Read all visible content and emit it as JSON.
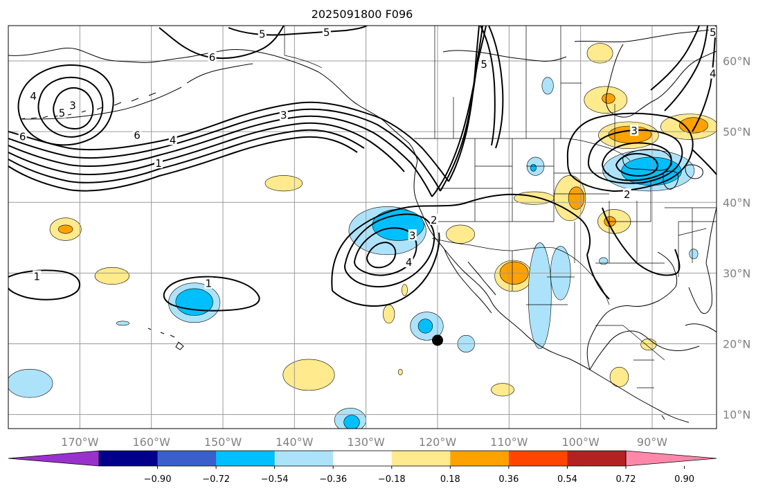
{
  "title": "2025091800 F096",
  "map": {
    "lon_range": [
      -180,
      -81
    ],
    "lat_range": [
      8,
      65
    ],
    "lon_ticks": [
      {
        "lon": -170,
        "label": "170°W"
      },
      {
        "lon": -160,
        "label": "160°W"
      },
      {
        "lon": -150,
        "label": "150°W"
      },
      {
        "lon": -140,
        "label": "140°W"
      },
      {
        "lon": -130,
        "label": "130°W"
      },
      {
        "lon": -120,
        "label": "120°W"
      },
      {
        "lon": -110,
        "label": "110°W"
      },
      {
        "lon": -100,
        "label": "100°W"
      },
      {
        "lon": -90,
        "label": "90°W"
      }
    ],
    "lat_ticks": [
      {
        "lat": 10,
        "label": "10°N"
      },
      {
        "lat": 20,
        "label": "20°N"
      },
      {
        "lat": 30,
        "label": "30°N"
      },
      {
        "lat": 40,
        "label": "40°N"
      },
      {
        "lat": 50,
        "label": "50°N"
      },
      {
        "lat": 60,
        "label": "60°N"
      }
    ],
    "marker": {
      "lon": -120,
      "lat": 20.5,
      "color": "#000000"
    },
    "contour_labels": [
      {
        "text": "5",
        "lon": -144.5,
        "lat": 63.8
      },
      {
        "text": "5",
        "lon": -135.5,
        "lat": 64
      },
      {
        "text": "6",
        "lon": -151.5,
        "lat": 60.5
      },
      {
        "text": "5",
        "lon": -113.5,
        "lat": 59.5
      },
      {
        "text": "4",
        "lon": -176.5,
        "lat": 55
      },
      {
        "text": "3",
        "lon": -171,
        "lat": 53.7
      },
      {
        "text": "5",
        "lon": -172.5,
        "lat": 52.6
      },
      {
        "text": "6",
        "lon": -178,
        "lat": 49.3
      },
      {
        "text": "6",
        "lon": -162,
        "lat": 49.5
      },
      {
        "text": "4",
        "lon": -157,
        "lat": 48.8
      },
      {
        "text": "1",
        "lon": -159,
        "lat": 45.5
      },
      {
        "text": "3",
        "lon": -141.5,
        "lat": 52.3
      },
      {
        "text": "3",
        "lon": -92.5,
        "lat": 50.1
      },
      {
        "text": "2",
        "lon": -120.5,
        "lat": 37.5
      },
      {
        "text": "3",
        "lon": -123.5,
        "lat": 35.3
      },
      {
        "text": "4",
        "lon": -124,
        "lat": 31.5
      },
      {
        "text": "2",
        "lon": -93.5,
        "lat": 41.1
      },
      {
        "text": "1",
        "lon": -176,
        "lat": 29.5
      },
      {
        "text": "1",
        "lon": -152,
        "lat": 28.5
      },
      {
        "text": "5",
        "lon": -81.5,
        "lat": 64
      },
      {
        "text": "4",
        "lon": -81.5,
        "lat": 58.2
      }
    ],
    "shading": [
      {
        "color": "#ffea8d",
        "lon": -141.5,
        "lat": 42.7,
        "rx": 2.6,
        "ry": 1.1
      },
      {
        "color": "#ffea8d",
        "lon": -172,
        "lat": 36.2,
        "rx": 2.2,
        "ry": 1.6
      },
      {
        "color": "#ffa200",
        "lon": -172,
        "lat": 36.2,
        "rx": 1.0,
        "ry": 0.6
      },
      {
        "color": "#ffea8d",
        "lon": -165.5,
        "lat": 29.6,
        "rx": 2.4,
        "ry": 1.2
      },
      {
        "color": "#ade3fa",
        "lon": -154,
        "lat": 25.8,
        "rx": 3.6,
        "ry": 2.8
      },
      {
        "color": "#00bfff",
        "lon": -154,
        "lat": 25.9,
        "rx": 2.6,
        "ry": 1.9
      },
      {
        "color": "#ade3fa",
        "lon": -177,
        "lat": 14.4,
        "rx": 3.2,
        "ry": 2.0
      },
      {
        "color": "#ffea8d",
        "lon": -138,
        "lat": 15.6,
        "rx": 3.6,
        "ry": 2.2
      },
      {
        "color": "#ade3fa",
        "lon": -132.2,
        "lat": 9.2,
        "rx": 2.2,
        "ry": 1.7
      },
      {
        "color": "#00bfff",
        "lon": -132,
        "lat": 8.9,
        "rx": 1.1,
        "ry": 1.0
      },
      {
        "color": "#ade3fa",
        "lon": -127,
        "lat": 36.0,
        "rx": 5.4,
        "ry": 3.4
      },
      {
        "color": "#00bfff",
        "lon": -125.5,
        "lat": 36.8,
        "rx": 3.6,
        "ry": 2.2
      },
      {
        "color": "#ffea8d",
        "lon": -126.8,
        "lat": 24.2,
        "rx": 0.8,
        "ry": 1.3
      },
      {
        "color": "#ffea8d",
        "lon": -124.6,
        "lat": 27.6,
        "rx": 0.4,
        "ry": 0.8
      },
      {
        "color": "#ade3fa",
        "lon": -121.5,
        "lat": 22.5,
        "rx": 2.3,
        "ry": 2.0
      },
      {
        "color": "#00bfff",
        "lon": -121.7,
        "lat": 22.5,
        "rx": 1.0,
        "ry": 1.0
      },
      {
        "color": "#ade3fa",
        "lon": -116,
        "lat": 20,
        "rx": 1.2,
        "ry": 1.2
      },
      {
        "color": "#ffea8d",
        "lon": -116.8,
        "lat": 35.5,
        "rx": 2.0,
        "ry": 1.3
      },
      {
        "color": "#ffea8d",
        "lon": -109.4,
        "lat": 29.6,
        "rx": 2.6,
        "ry": 2.2
      },
      {
        "color": "#ffa200",
        "lon": -109.3,
        "lat": 30.0,
        "rx": 2.0,
        "ry": 1.6
      },
      {
        "color": "#ffea8d",
        "lon": -106.5,
        "lat": 40.6,
        "rx": 2.8,
        "ry": 0.9
      },
      {
        "color": "#ffea8d",
        "lon": -101.5,
        "lat": 40.6,
        "rx": 2.2,
        "ry": 3.2
      },
      {
        "color": "#ffa200",
        "lon": -100.6,
        "lat": 40.6,
        "rx": 1.1,
        "ry": 1.6
      },
      {
        "color": "#ffea8d",
        "lon": -95.3,
        "lat": 37.3,
        "rx": 2.3,
        "ry": 1.7
      },
      {
        "color": "#ffa200",
        "lon": -95.9,
        "lat": 37.3,
        "rx": 0.8,
        "ry": 0.7
      },
      {
        "color": "#ade3fa",
        "lon": -106.3,
        "lat": 45.1,
        "rx": 1.2,
        "ry": 1.3
      },
      {
        "color": "#00bfff",
        "lon": -106.6,
        "lat": 44.9,
        "rx": 0.4,
        "ry": 0.5
      },
      {
        "color": "#ade3fa",
        "lon": -104.6,
        "lat": 56.5,
        "rx": 0.8,
        "ry": 1.2
      },
      {
        "color": "#ffea8d",
        "lon": -97.3,
        "lat": 61.1,
        "rx": 1.8,
        "ry": 1.4
      },
      {
        "color": "#ffea8d",
        "lon": -96.5,
        "lat": 54.5,
        "rx": 3.0,
        "ry": 1.9
      },
      {
        "color": "#ffa200",
        "lon": -96.1,
        "lat": 54.7,
        "rx": 0.9,
        "ry": 0.7
      },
      {
        "color": "#ffea8d",
        "lon": -93.3,
        "lat": 49.5,
        "rx": 4.2,
        "ry": 1.9
      },
      {
        "color": "#ffa200",
        "lon": -93.1,
        "lat": 49.6,
        "rx": 3.0,
        "ry": 1.2
      },
      {
        "color": "#ffea8d",
        "lon": -84.8,
        "lat": 50.7,
        "rx": 4.0,
        "ry": 1.8
      },
      {
        "color": "#ffa200",
        "lon": -84.2,
        "lat": 50.9,
        "rx": 2.0,
        "ry": 1.1
      },
      {
        "color": "#ade3fa",
        "lon": -90.5,
        "lat": 44.5,
        "rx": 6.4,
        "ry": 2.9
      },
      {
        "color": "#00bfff",
        "lon": -90.1,
        "lat": 44.4,
        "rx": 4.2,
        "ry": 2.0
      },
      {
        "color": "#ade3fa",
        "lon": -105.7,
        "lat": 26.8,
        "rx": 1.6,
        "ry": 7.5
      },
      {
        "color": "#ade3fa",
        "lon": -102.8,
        "lat": 30.0,
        "rx": 1.4,
        "ry": 3.8
      },
      {
        "color": "#ade3fa",
        "lon": -84.2,
        "lat": 32.7,
        "rx": 0.6,
        "ry": 0.7
      },
      {
        "color": "#ade3fa",
        "lon": -96.8,
        "lat": 31.7,
        "rx": 0.6,
        "ry": 0.5
      },
      {
        "color": "#ffea8d",
        "lon": -90.5,
        "lat": 19.9,
        "rx": 1.1,
        "ry": 0.8
      },
      {
        "color": "#ffea8d",
        "lon": -94.6,
        "lat": 15.3,
        "rx": 1.3,
        "ry": 1.4
      },
      {
        "color": "#ffea8d",
        "lon": -110.9,
        "lat": 13.5,
        "rx": 1.6,
        "ry": 0.9
      },
      {
        "color": "#ade3fa",
        "lon": -164,
        "lat": 22.9,
        "rx": 0.9,
        "ry": 0.3
      },
      {
        "color": "#ffea8d",
        "lon": -125.2,
        "lat": 16.0,
        "rx": 0.3,
        "ry": 0.4
      }
    ]
  },
  "colorbar": {
    "colors": [
      "#9932cc",
      "#00008b",
      "#3a5fcd",
      "#00bfff",
      "#ade3fa",
      "#ffffff",
      "#ffea8d",
      "#ffa200",
      "#ff4500",
      "#b22222",
      "#ff88aa"
    ],
    "ticks": [
      "−0.90",
      "−0.72",
      "−0.54",
      "−0.36",
      "−0.18",
      "0.18",
      "0.36",
      "0.54",
      "0.72",
      "0.90"
    ]
  }
}
